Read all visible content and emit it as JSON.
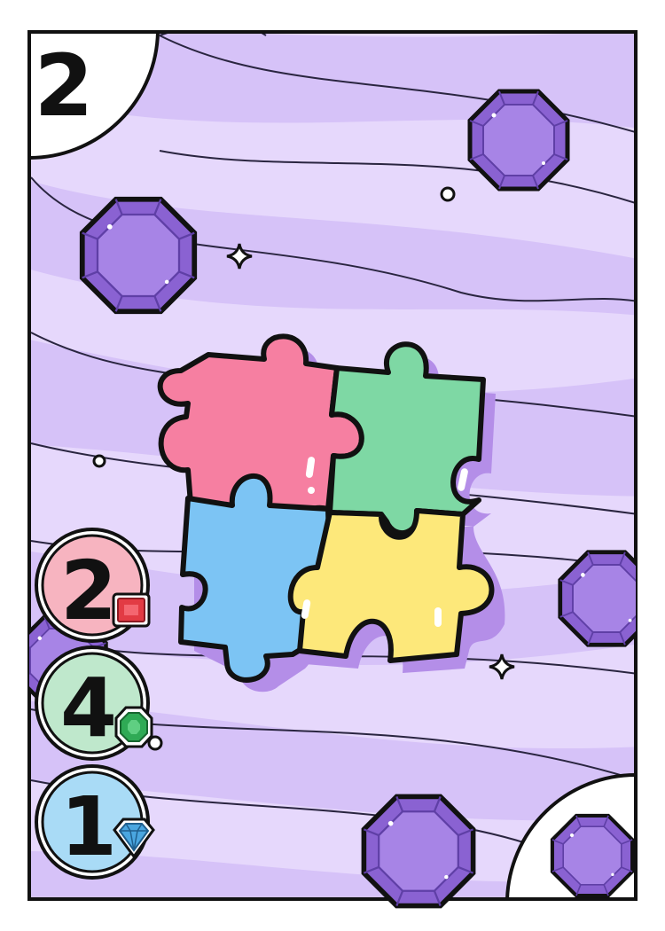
{
  "card": {
    "value": "2",
    "theme_color": "#d9c7fb",
    "illustration": "puzzle-pieces"
  },
  "costs": [
    {
      "amount": "2",
      "gem": "ruby-gem-icon",
      "bg": "#f7b4c0",
      "gem_color": "#e23b44"
    },
    {
      "amount": "4",
      "gem": "emerald-gem-icon",
      "bg": "#bfe8cc",
      "gem_color": "#2faa55"
    },
    {
      "amount": "1",
      "gem": "diamond-gem-icon",
      "bg": "#a9dbf6",
      "gem_color": "#4aa6e0"
    }
  ],
  "bonus_gem": {
    "name": "amethyst-gem-icon",
    "color": "#9b7bd9"
  },
  "puzzle_colors": {
    "pink": "#f67fa1",
    "green": "#7ed8a4",
    "blue": "#7cc4f4",
    "yellow": "#fde87a"
  }
}
